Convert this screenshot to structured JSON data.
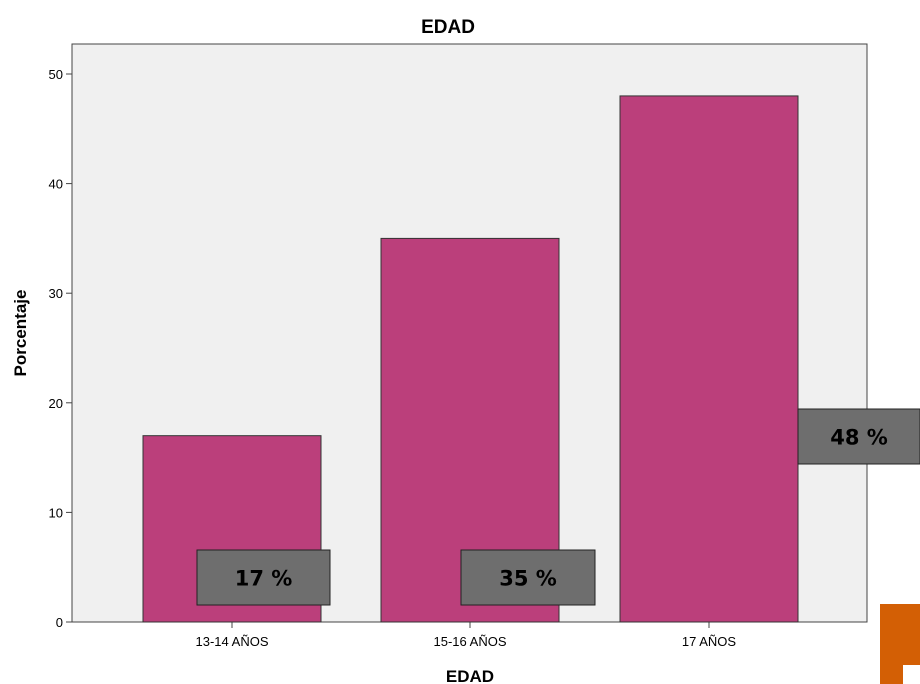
{
  "chart_data": {
    "type": "bar",
    "title": "EDAD",
    "xlabel": "EDAD",
    "ylabel": "Porcentaje",
    "categories": [
      "13-14 AÑOS",
      "15-16 AÑOS",
      "17 AÑOS"
    ],
    "values": [
      17,
      35,
      48
    ],
    "data_labels": [
      "17 %",
      "35 %",
      "48 %"
    ],
    "ylim": [
      0,
      52
    ],
    "yticks": [
      0,
      10,
      20,
      30,
      40,
      50
    ],
    "grid": false,
    "bar_color": "#bb3f7b",
    "plot_background": "#f0f0f0",
    "label_box_color": "#6e6e6e"
  },
  "decoration": {
    "corner_accent_color": "#d35f05"
  }
}
